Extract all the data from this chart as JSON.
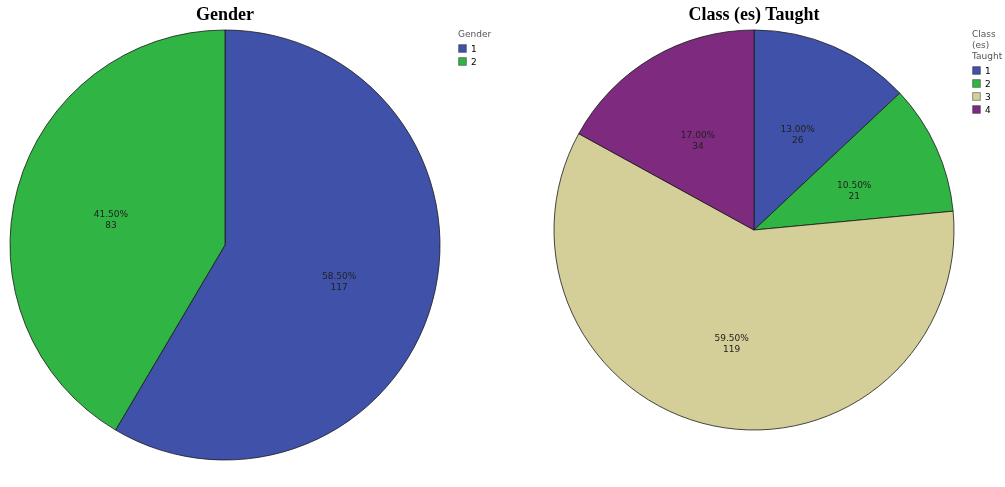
{
  "chart_data": [
    {
      "type": "pie",
      "title": "Gender",
      "legend_title": "Gender",
      "legend": "top right",
      "categories": [
        "1",
        "2"
      ],
      "values": [
        117,
        83
      ],
      "colors": [
        "#3f51a8",
        "#30b443"
      ],
      "value_labels": [
        "58.50%\n117",
        "41.50%\n83"
      ]
    },
    {
      "type": "pie",
      "title": "Class (es) Taught",
      "legend_title": "Class\n(es)\nTaught",
      "legend": "top right",
      "categories": [
        "1",
        "2",
        "3",
        "4"
      ],
      "values": [
        26,
        21,
        119,
        34
      ],
      "colors": [
        "#3f51a8",
        "#30b443",
        "#d4cf98",
        "#7d2a7f"
      ],
      "value_labels": [
        "13.00%\n26",
        "10.50%\n21",
        "59.50%\n119",
        "17.00%\n34"
      ]
    }
  ]
}
